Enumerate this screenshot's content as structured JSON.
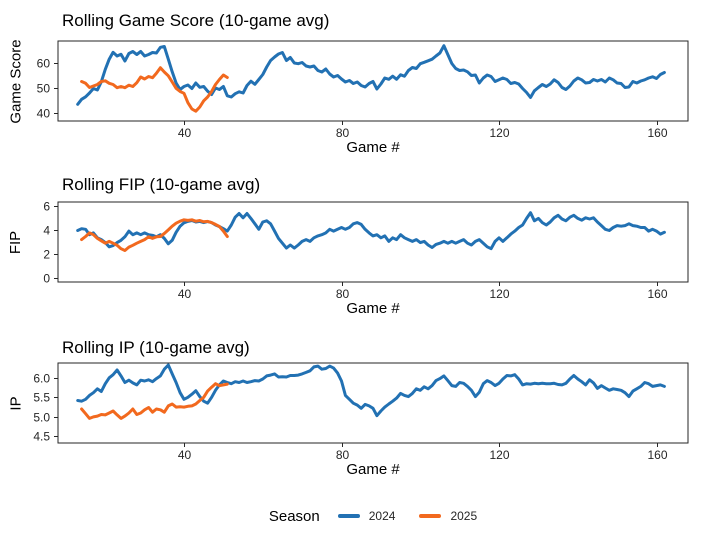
{
  "colors": {
    "season2024": "#2271b3",
    "season2025": "#f2691e",
    "axis": "#262626"
  },
  "legend": {
    "title": "Season",
    "items": [
      {
        "label": "2024",
        "color": "#2271b3"
      },
      {
        "label": "2025",
        "color": "#f2691e"
      }
    ]
  },
  "chart_data": [
    {
      "type": "line",
      "title": "Rolling Game Score (10-game avg)",
      "xlabel": "Game #",
      "ylabel": "Game Score",
      "grid": false,
      "legend_position": "bottom-shared",
      "xlim": [
        8,
        168
      ],
      "ylim": [
        36.8,
        68.8
      ],
      "xticks": [
        40,
        80,
        120,
        160
      ],
      "yticks": [
        {
          "v": 40,
          "label": "40"
        },
        {
          "v": 50,
          "label": "50"
        },
        {
          "v": 60,
          "label": "60"
        }
      ],
      "series": [
        {
          "name": "2024",
          "color": "#2271b3",
          "x_start": 13,
          "x_step": 1,
          "y": [
            43.5,
            45.5,
            46.5,
            48.0,
            49.8,
            49.2,
            52.5,
            57.5,
            61.5,
            64.3,
            62.8,
            63.5,
            60.8,
            63.8,
            64.6,
            63.4,
            64.6,
            62.8,
            63.4,
            64.2,
            64.0,
            66.3,
            66.6,
            61.5,
            56.5,
            52.0,
            49.4,
            50.6,
            51.2,
            49.8,
            52.0,
            50.3,
            50.6,
            48.7,
            47.4,
            50.0,
            49.4,
            50.6,
            46.9,
            46.4,
            47.7,
            48.5,
            48.0,
            51.0,
            52.7,
            51.5,
            53.4,
            55.4,
            58.4,
            61.0,
            62.4,
            63.6,
            64.2,
            61.0,
            62.2,
            60.0,
            59.7,
            60.2,
            58.8,
            58.4,
            58.8,
            57.0,
            56.4,
            57.6,
            55.6,
            54.4,
            55.0,
            53.6,
            52.4,
            53.0,
            51.8,
            52.4,
            51.0,
            50.4,
            51.8,
            52.6,
            49.6,
            51.6,
            54.0,
            53.5,
            54.7,
            53.5,
            55.3,
            54.7,
            57.0,
            58.2,
            57.8,
            59.7,
            60.3,
            60.9,
            61.5,
            62.8,
            64.0,
            66.9,
            63.4,
            59.8,
            57.8,
            57.0,
            57.2,
            56.5,
            55.0,
            55.2,
            52.0,
            54.0,
            55.2,
            54.6,
            52.6,
            53.3,
            54.0,
            53.4,
            51.8,
            52.2,
            51.6,
            49.8,
            48.2,
            46.2,
            48.9,
            50.2,
            51.4,
            50.6,
            51.6,
            53.3,
            52.2,
            50.2,
            49.4,
            50.8,
            52.8,
            54.0,
            53.3,
            52.0,
            52.2,
            53.4,
            52.8,
            53.4,
            52.4,
            54.0,
            53.3,
            52.0,
            51.8,
            50.2,
            50.4,
            52.6,
            52.0,
            52.8,
            53.3,
            54.0,
            54.5,
            53.8,
            55.4,
            56.2
          ]
        },
        {
          "name": "2025",
          "color": "#f2691e",
          "x_start": 14,
          "x_step": 1,
          "y": [
            52.6,
            51.9,
            50.2,
            50.8,
            51.4,
            52.6,
            52.9,
            51.9,
            51.4,
            50.1,
            50.6,
            50.1,
            51.1,
            50.6,
            52.1,
            54.4,
            53.6,
            54.6,
            54.1,
            55.9,
            58.1,
            56.4,
            54.9,
            52.4,
            49.9,
            48.6,
            47.9,
            44.1,
            41.6,
            40.7,
            42.4,
            44.9,
            46.4,
            48.6,
            51.4,
            53.4,
            55.2,
            54.2
          ]
        }
      ]
    },
    {
      "type": "line",
      "title": "Rolling FIP (10-game avg)",
      "xlabel": "Game #",
      "ylabel": "FIP",
      "grid": false,
      "legend_position": "bottom-shared",
      "xlim": [
        8,
        168
      ],
      "ylim": [
        -0.3,
        6.3
      ],
      "xticks": [
        40,
        80,
        120,
        160
      ],
      "yticks": [
        {
          "v": 0,
          "label": "0"
        },
        {
          "v": 2,
          "label": "2"
        },
        {
          "v": 4,
          "label": "4"
        },
        {
          "v": 6,
          "label": "6"
        }
      ],
      "series": [
        {
          "name": "2024",
          "color": "#2271b3",
          "x_start": 13,
          "x_step": 1,
          "y": [
            3.95,
            4.1,
            4.05,
            3.6,
            3.75,
            3.35,
            3.2,
            2.95,
            2.6,
            2.7,
            2.95,
            3.14,
            3.43,
            3.9,
            3.6,
            3.75,
            3.6,
            3.75,
            3.6,
            3.55,
            3.43,
            3.6,
            3.3,
            2.85,
            3.14,
            3.8,
            4.3,
            4.58,
            4.7,
            4.77,
            4.65,
            4.7,
            4.6,
            4.68,
            4.6,
            4.4,
            4.27,
            4.1,
            3.9,
            4.4,
            5.05,
            5.35,
            5.0,
            5.35,
            4.95,
            4.5,
            4.05,
            4.65,
            4.75,
            4.5,
            3.9,
            3.3,
            2.9,
            2.5,
            2.75,
            2.5,
            2.75,
            3.05,
            3.2,
            3.05,
            3.35,
            3.5,
            3.6,
            3.75,
            4.05,
            3.9,
            4.05,
            4.2,
            4.05,
            4.2,
            4.5,
            4.6,
            4.45,
            4.05,
            3.75,
            3.5,
            3.6,
            3.35,
            3.5,
            3.05,
            3.35,
            3.2,
            3.6,
            3.35,
            3.2,
            3.05,
            3.2,
            2.95,
            3.05,
            2.75,
            2.55,
            2.8,
            2.9,
            3.05,
            2.9,
            3.05,
            2.9,
            3.05,
            3.2,
            2.9,
            2.75,
            3.05,
            3.2,
            2.9,
            2.6,
            2.45,
            3.05,
            3.35,
            3.05,
            3.35,
            3.65,
            3.9,
            4.2,
            4.4,
            4.95,
            5.42,
            4.75,
            4.95,
            4.6,
            4.4,
            4.65,
            5.0,
            5.2,
            4.9,
            4.75,
            5.05,
            5.2,
            4.95,
            4.8,
            5.0,
            4.9,
            5.0,
            4.65,
            4.35,
            4.05,
            3.95,
            4.2,
            4.35,
            4.3,
            4.35,
            4.5,
            4.35,
            4.3,
            4.2,
            4.2,
            3.9,
            4.05,
            3.9,
            3.65,
            3.8
          ]
        },
        {
          "name": "2025",
          "color": "#f2691e",
          "x_start": 14,
          "x_step": 1,
          "y": [
            3.2,
            3.45,
            3.75,
            3.6,
            3.3,
            3.1,
            2.9,
            3.05,
            2.9,
            2.73,
            2.45,
            2.3,
            2.58,
            2.73,
            2.9,
            3.05,
            3.2,
            3.43,
            3.3,
            3.43,
            3.45,
            3.7,
            4.0,
            4.3,
            4.55,
            4.72,
            4.83,
            4.78,
            4.83,
            4.72,
            4.77,
            4.67,
            4.7,
            4.6,
            4.45,
            4.28,
            3.9,
            3.45
          ]
        }
      ]
    },
    {
      "type": "line",
      "title": "Rolling IP (10-game avg)",
      "xlabel": "Game #",
      "ylabel": "IP",
      "grid": false,
      "legend_position": "bottom-shared",
      "xlim": [
        8,
        168
      ],
      "ylim": [
        4.33,
        6.38
      ],
      "xticks": [
        40,
        80,
        120,
        160
      ],
      "yticks": [
        {
          "v": 4.5,
          "label": "4.5"
        },
        {
          "v": 5.0,
          "label": "5.0"
        },
        {
          "v": 5.5,
          "label": "5.5"
        },
        {
          "v": 6.0,
          "label": "6.0"
        }
      ],
      "series": [
        {
          "name": "2024",
          "color": "#2271b3",
          "x_start": 13,
          "x_step": 1,
          "y": [
            5.42,
            5.4,
            5.45,
            5.55,
            5.62,
            5.72,
            5.65,
            5.85,
            6.0,
            6.08,
            6.2,
            6.05,
            5.88,
            5.94,
            5.87,
            5.82,
            5.94,
            5.92,
            5.95,
            5.9,
            5.98,
            6.05,
            6.22,
            6.33,
            6.1,
            5.88,
            5.62,
            5.45,
            5.5,
            5.58,
            5.67,
            5.52,
            5.4,
            5.35,
            5.5,
            5.68,
            5.82,
            5.92,
            5.88,
            5.85,
            5.9,
            5.88,
            5.92,
            5.88,
            5.9,
            5.93,
            5.92,
            5.97,
            6.05,
            6.07,
            6.1,
            6.02,
            6.03,
            6.02,
            6.06,
            6.06,
            6.07,
            6.1,
            6.14,
            6.18,
            6.28,
            6.3,
            6.22,
            6.24,
            6.3,
            6.25,
            6.12,
            5.92,
            5.55,
            5.45,
            5.35,
            5.3,
            5.22,
            5.32,
            5.28,
            5.22,
            5.03,
            5.15,
            5.25,
            5.33,
            5.4,
            5.48,
            5.6,
            5.55,
            5.52,
            5.6,
            5.72,
            5.68,
            5.77,
            5.72,
            5.8,
            5.93,
            5.98,
            6.05,
            5.93,
            5.8,
            5.78,
            5.88,
            5.86,
            5.78,
            5.68,
            5.52,
            5.63,
            5.85,
            5.93,
            5.88,
            5.8,
            5.86,
            5.97,
            6.06,
            6.05,
            6.08,
            5.97,
            5.82,
            5.85,
            5.84,
            5.86,
            5.85,
            5.86,
            5.85,
            5.85,
            5.86,
            5.83,
            5.82,
            5.86,
            5.97,
            6.06,
            5.97,
            5.9,
            5.82,
            5.95,
            5.87,
            5.73,
            5.8,
            5.74,
            5.68,
            5.72,
            5.7,
            5.68,
            5.62,
            5.52,
            5.66,
            5.72,
            5.78,
            5.88,
            5.85,
            5.78,
            5.8,
            5.82,
            5.78
          ]
        },
        {
          "name": "2025",
          "color": "#f2691e",
          "x_start": 14,
          "x_step": 1,
          "y": [
            5.2,
            5.08,
            4.96,
            5.0,
            5.02,
            5.06,
            5.05,
            5.1,
            5.15,
            5.05,
            4.96,
            5.02,
            5.1,
            5.2,
            5.06,
            5.1,
            5.18,
            5.24,
            5.12,
            5.2,
            5.18,
            5.12,
            5.28,
            5.33,
            5.25,
            5.26,
            5.25,
            5.27,
            5.28,
            5.33,
            5.42,
            5.5,
            5.66,
            5.76,
            5.85,
            5.8,
            5.82,
            5.84
          ]
        }
      ]
    }
  ]
}
